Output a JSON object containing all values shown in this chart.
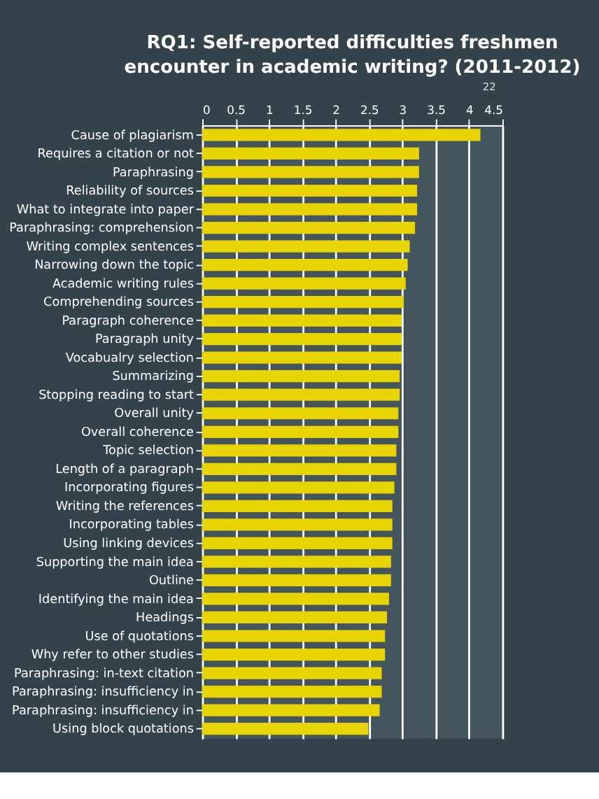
{
  "chart_data": {
    "type": "bar",
    "orientation": "horizontal",
    "title": "RQ1: Self-reported difficulties freshmen encounter in academic writing? (2011-2012)",
    "categories": [
      "Cause of plagiarism",
      "Requires a citation or not",
      "Paraphrasing",
      "Reliability of sources",
      "What to integrate into paper",
      "Paraphrasing: comprehension",
      "Writing complex sentences",
      "Narrowing down the topic",
      "Academic writing rules",
      "Comprehending sources",
      "Paragraph coherence",
      "Paragraph unity",
      "Vocabualry selection",
      "Summarizing",
      "Stopping reading to start",
      "Overall unity",
      "Overall coherence",
      "Topic selection",
      "Length of a paragraph",
      "Incorporating figures",
      "Writing the references",
      "Incorporating tables",
      "Using linking devices",
      "Supporting the main idea",
      "Outline",
      "Identifying the main idea",
      "Headings",
      "Use of quotations",
      "Why refer to other studies",
      "Paraphrasing: in-text citation",
      "Paraphrasing: insufficiency in",
      "Paraphrasing: insufficiency in",
      "Using block quotations"
    ],
    "values": [
      4.17,
      3.25,
      3.25,
      3.22,
      3.22,
      3.19,
      3.11,
      3.08,
      3.05,
      3.02,
      2.99,
      2.99,
      2.99,
      2.96,
      2.96,
      2.94,
      2.94,
      2.91,
      2.91,
      2.88,
      2.85,
      2.85,
      2.85,
      2.83,
      2.83,
      2.8,
      2.77,
      2.74,
      2.74,
      2.69,
      2.69,
      2.66,
      2.49
    ],
    "color": "#e8d400",
    "xlim": [
      0,
      4.5
    ],
    "xticks": [
      0,
      0.5,
      1,
      1.5,
      2,
      2.5,
      3,
      3.5,
      4,
      4.5
    ],
    "grid": "x",
    "annotations": [
      "22"
    ]
  }
}
